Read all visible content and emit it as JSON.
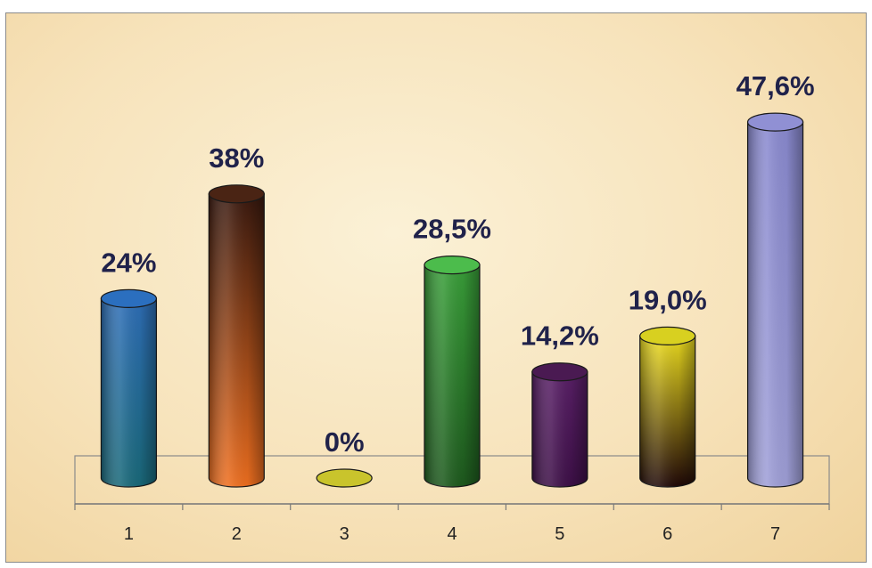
{
  "chart_data": {
    "type": "bar",
    "style": "3d-cylinder",
    "categories": [
      "1",
      "2",
      "3",
      "4",
      "5",
      "6",
      "7"
    ],
    "values": [
      24,
      38,
      0,
      28.5,
      14.2,
      19.0,
      47.6
    ],
    "data_labels": [
      "24%",
      "38%",
      "0%",
      "28,5%",
      "14,2%",
      "19,0%",
      "47,6%"
    ],
    "title": "",
    "xlabel": "",
    "ylabel": "",
    "ylim": [
      0,
      50
    ],
    "grid": false,
    "legend": "none",
    "bar_colors": [
      {
        "top": "#2f6fb8",
        "bottom": "#1a6a7a",
        "cap": "#2b6fbf"
      },
      {
        "top": "#3a1a10",
        "bottom": "#f07020",
        "cap": "#4a2414"
      },
      {
        "top": "#c8c830",
        "bottom": "#c8c830",
        "cap": "#c9c42c"
      },
      {
        "top": "#3aa03a",
        "bottom": "#1e5a1e",
        "cap": "#4cbc4c"
      },
      {
        "top": "#5a2068",
        "bottom": "#3e1048",
        "cap": "#4a1a52"
      },
      {
        "top": "#f0e020",
        "bottom": "#200808",
        "cap": "#d8d020"
      },
      {
        "top": "#8a8ad0",
        "bottom": "#a0a0d8",
        "cap": "#9090d4"
      }
    ],
    "label_color": "#20224a"
  }
}
